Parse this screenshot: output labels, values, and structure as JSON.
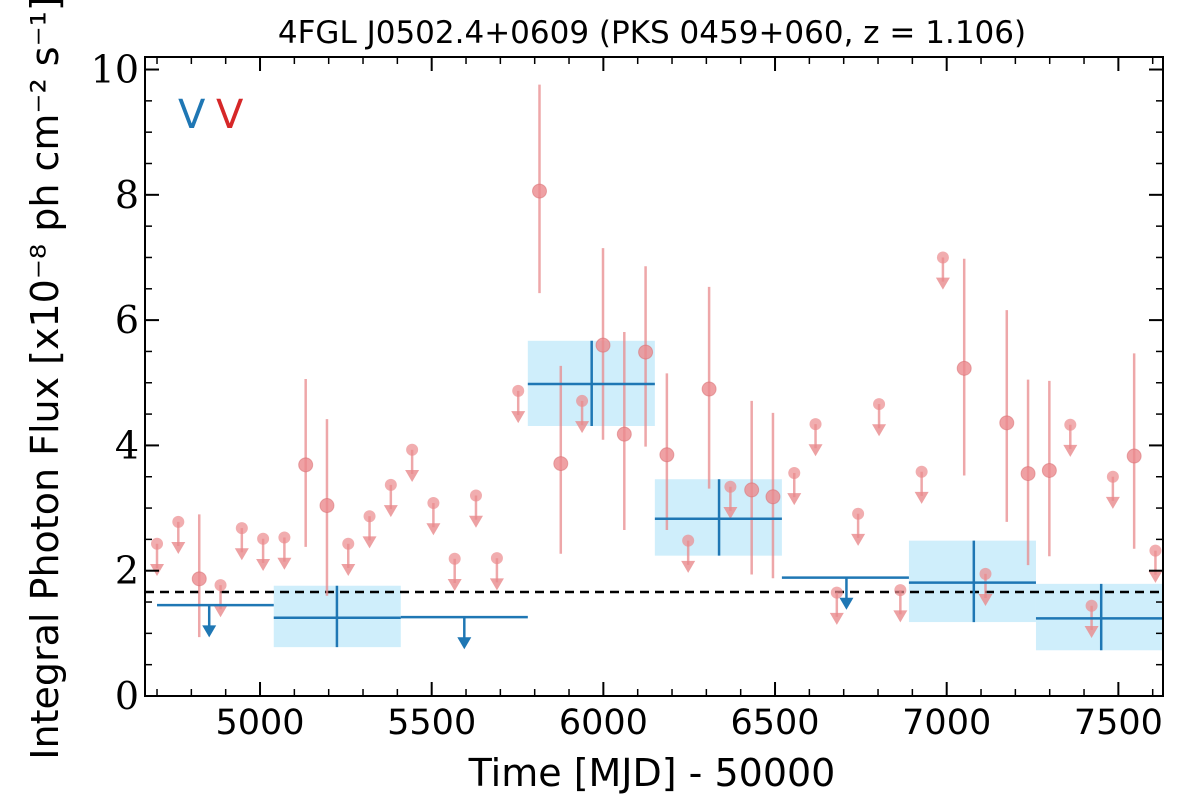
{
  "chart_data": {
    "type": "scatter",
    "title": "4FGL J0502.4+0609 (PKS 0459+060, z = 1.106)",
    "xlabel": "Time [MJD] - 50000",
    "ylabel": "Integral Photon Flux [x10⁻⁸ ph cm⁻² s⁻¹]",
    "xlim": [
      4665,
      7630
    ],
    "ylim": [
      0,
      10.2
    ],
    "x_ticks": [
      5000,
      5500,
      6000,
      6500,
      7000,
      7500
    ],
    "x_tick_labels": [
      "5000",
      "5500",
      "6000",
      "6500",
      "7000",
      "7500"
    ],
    "y_ticks": [
      0,
      2,
      4,
      6,
      8,
      10
    ],
    "y_tick_labels": [
      "0",
      "2",
      "4",
      "6",
      "8",
      "10"
    ],
    "legend": {
      "placement": "top-left",
      "entries": [
        {
          "label": "V",
          "color": "#1f77b4"
        },
        {
          "label": "V",
          "color": "#d62728"
        }
      ]
    },
    "reference_line": {
      "y": 1.66,
      "style": "dashed",
      "color": "#000000"
    },
    "colors": {
      "fine_series": "#e8898c",
      "fine_series_fill": "#eb8a8d",
      "coarse_series": "#1f77b4",
      "coarse_band": "#cfeefb"
    },
    "series": [
      {
        "binning": "fine",
        "points": [
          {
            "x": 4700,
            "y": 2.43,
            "upper_limit": true
          },
          {
            "x": 4762,
            "y": 2.78,
            "upper_limit": true
          },
          {
            "x": 4823,
            "y": 1.87,
            "err_low": 0.93,
            "err_high": 1.03
          },
          {
            "x": 4885,
            "y": 1.77,
            "upper_limit": true
          },
          {
            "x": 4947,
            "y": 2.68,
            "upper_limit": true
          },
          {
            "x": 5009,
            "y": 2.51,
            "upper_limit": true
          },
          {
            "x": 5071,
            "y": 2.53,
            "upper_limit": true
          },
          {
            "x": 5133,
            "y": 3.69,
            "err_low": 1.31,
            "err_high": 1.37
          },
          {
            "x": 5195,
            "y": 3.04,
            "err_low": 1.44,
            "err_high": 1.38
          },
          {
            "x": 5257,
            "y": 2.43,
            "upper_limit": true
          },
          {
            "x": 5319,
            "y": 2.87,
            "upper_limit": true
          },
          {
            "x": 5381,
            "y": 3.37,
            "upper_limit": true
          },
          {
            "x": 5443,
            "y": 3.93,
            "upper_limit": true
          },
          {
            "x": 5505,
            "y": 3.08,
            "upper_limit": true
          },
          {
            "x": 5567,
            "y": 2.19,
            "upper_limit": true
          },
          {
            "x": 5629,
            "y": 3.2,
            "upper_limit": true
          },
          {
            "x": 5690,
            "y": 2.2,
            "upper_limit": true
          },
          {
            "x": 5752,
            "y": 4.87,
            "upper_limit": true
          },
          {
            "x": 5814,
            "y": 8.06,
            "err_low": 1.63,
            "err_high": 1.7
          },
          {
            "x": 5876,
            "y": 3.71,
            "err_low": 1.44,
            "err_high": 1.56
          },
          {
            "x": 5938,
            "y": 4.71,
            "upper_limit": true
          },
          {
            "x": 5999,
            "y": 5.6,
            "err_low": 1.51,
            "err_high": 1.55
          },
          {
            "x": 6061,
            "y": 4.18,
            "err_low": 1.53,
            "err_high": 1.63
          },
          {
            "x": 6123,
            "y": 5.49,
            "err_low": 1.51,
            "err_high": 1.37
          },
          {
            "x": 6185,
            "y": 3.85,
            "err_low": 1.2,
            "err_high": 1.3
          },
          {
            "x": 6247,
            "y": 2.48,
            "upper_limit": true
          },
          {
            "x": 6308,
            "y": 4.9,
            "err_low": 1.59,
            "err_high": 1.63
          },
          {
            "x": 6370,
            "y": 3.34,
            "upper_limit": true
          },
          {
            "x": 6432,
            "y": 3.29,
            "err_low": 1.35,
            "err_high": 1.42
          },
          {
            "x": 6494,
            "y": 3.18,
            "err_low": 1.3,
            "err_high": 1.34
          },
          {
            "x": 6556,
            "y": 3.56,
            "upper_limit": true
          },
          {
            "x": 6618,
            "y": 4.34,
            "upper_limit": true
          },
          {
            "x": 6680,
            "y": 1.65,
            "upper_limit": true
          },
          {
            "x": 6742,
            "y": 2.91,
            "upper_limit": true
          },
          {
            "x": 6803,
            "y": 4.66,
            "upper_limit": true
          },
          {
            "x": 6865,
            "y": 1.69,
            "upper_limit": true
          },
          {
            "x": 6927,
            "y": 3.58,
            "upper_limit": true
          },
          {
            "x": 6989,
            "y": 7.0,
            "upper_limit": true
          },
          {
            "x": 7051,
            "y": 5.23,
            "err_low": 1.71,
            "err_high": 1.75
          },
          {
            "x": 7113,
            "y": 1.95,
            "upper_limit": true
          },
          {
            "x": 7175,
            "y": 4.36,
            "err_low": 1.58,
            "err_high": 1.8
          },
          {
            "x": 7237,
            "y": 3.55,
            "err_low": 1.46,
            "err_high": 1.5
          },
          {
            "x": 7299,
            "y": 3.6,
            "err_low": 1.37,
            "err_high": 1.43
          },
          {
            "x": 7360,
            "y": 4.33,
            "upper_limit": true
          },
          {
            "x": 7422,
            "y": 1.44,
            "upper_limit": true
          },
          {
            "x": 7484,
            "y": 3.5,
            "upper_limit": true
          },
          {
            "x": 7546,
            "y": 3.83,
            "err_low": 1.48,
            "err_high": 1.64
          },
          {
            "x": 7608,
            "y": 2.32,
            "upper_limit": true
          }
        ]
      },
      {
        "binning": "coarse",
        "points": [
          {
            "x": 4852,
            "x_lo": 4700,
            "x_hi": 5040,
            "y": 1.45,
            "upper_limit": true
          },
          {
            "x": 5224,
            "x_lo": 5040,
            "x_hi": 5410,
            "y": 1.25,
            "err_low": 0.47,
            "err_high": 0.51
          },
          {
            "x": 5595,
            "x_lo": 5410,
            "x_hi": 5780,
            "y": 1.26,
            "upper_limit": true
          },
          {
            "x": 5966,
            "x_lo": 5780,
            "x_hi": 6150,
            "y": 4.98,
            "err_low": 0.67,
            "err_high": 0.69
          },
          {
            "x": 6337,
            "x_lo": 6150,
            "x_hi": 6520,
            "y": 2.83,
            "err_low": 0.59,
            "err_high": 0.63
          },
          {
            "x": 6708,
            "x_lo": 6520,
            "x_hi": 6890,
            "y": 1.89,
            "upper_limit": true
          },
          {
            "x": 7079,
            "x_lo": 6890,
            "x_hi": 7260,
            "y": 1.81,
            "err_low": 0.63,
            "err_high": 0.67
          },
          {
            "x": 7450,
            "x_lo": 7260,
            "x_hi": 7630,
            "y": 1.24,
            "err_low": 0.51,
            "err_high": 0.55
          }
        ]
      }
    ]
  }
}
